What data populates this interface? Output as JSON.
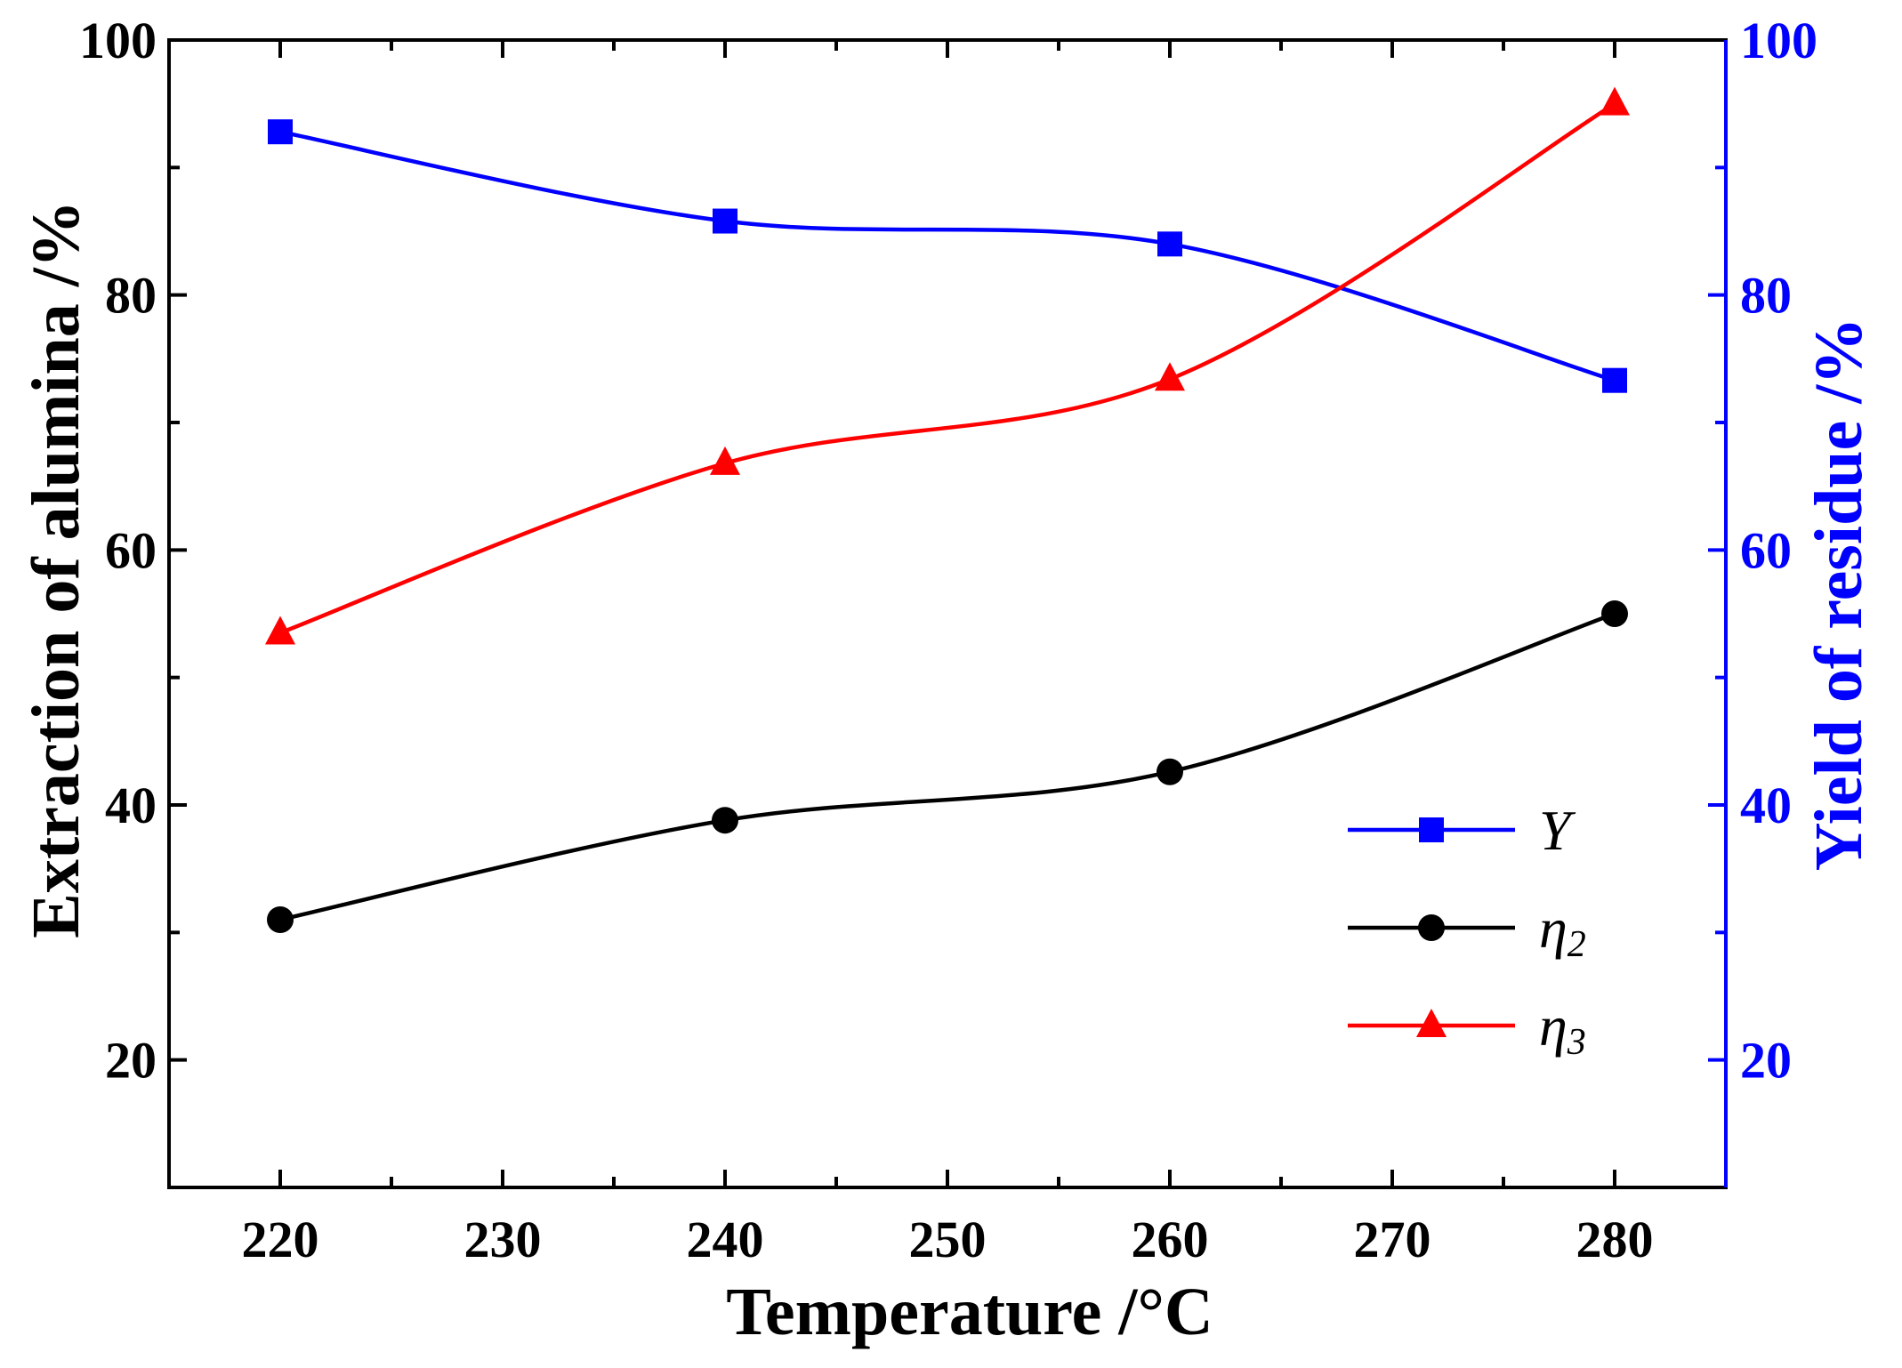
{
  "chart_data": {
    "type": "line",
    "title": "",
    "xlabel": "Temperature /°C",
    "ylabel_left": "Extraction of alumina /%",
    "ylabel_right": "Yield of residue /%",
    "xlim": [
      215,
      285
    ],
    "ylim_left": [
      10,
      100
    ],
    "ylim_right": [
      10,
      100
    ],
    "x_ticks": [
      220,
      230,
      240,
      250,
      260,
      270,
      280
    ],
    "y_ticks_left": [
      20,
      40,
      60,
      80,
      100
    ],
    "y_ticks_right": [
      20,
      40,
      60,
      80,
      100
    ],
    "x": [
      220,
      240,
      260,
      280
    ],
    "series": [
      {
        "name": "Y",
        "base": "Y",
        "sub": "",
        "axis": "right",
        "marker": "square",
        "color": "#0000ff",
        "values": [
          92.8,
          85.8,
          84.0,
          73.3
        ]
      },
      {
        "name": "η2",
        "base": "η",
        "sub": "2",
        "axis": "left",
        "marker": "circle",
        "color": "#000000",
        "values": [
          31.0,
          38.8,
          42.6,
          55.0
        ]
      },
      {
        "name": "η3",
        "base": "η",
        "sub": "3",
        "axis": "left",
        "marker": "triangle",
        "color": "#ff0000",
        "values": [
          53.5,
          66.8,
          73.4,
          95.0
        ]
      }
    ],
    "legend_position": "center-right",
    "grid": false
  }
}
